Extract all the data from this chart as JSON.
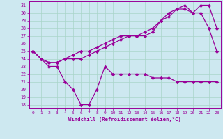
{
  "xlabel": "Windchill (Refroidissement éolien,°C)",
  "background_color": "#cde8f0",
  "grid_color": "#a8d5c8",
  "line_color": "#990099",
  "x": [
    0,
    1,
    2,
    3,
    4,
    5,
    6,
    7,
    8,
    9,
    10,
    11,
    12,
    13,
    14,
    15,
    16,
    17,
    18,
    19,
    20,
    21,
    22,
    23
  ],
  "line1": [
    25,
    24,
    23.5,
    23.5,
    24,
    24,
    24,
    24.5,
    25,
    25.5,
    26,
    26.5,
    27,
    27,
    27,
    27.5,
    29,
    29.5,
    30.5,
    30.5,
    30,
    31,
    31,
    28
  ],
  "line2": [
    25,
    24,
    23.5,
    23.5,
    24,
    24.5,
    25,
    25,
    25.5,
    26,
    26.5,
    27,
    27,
    27,
    27.5,
    28,
    29,
    30,
    30.5,
    31,
    30,
    30,
    28,
    25
  ],
  "line3": [
    25,
    24,
    23,
    23,
    21,
    20,
    18,
    18,
    20,
    23,
    22,
    22,
    22,
    22,
    22,
    21.5,
    21.5,
    21.5,
    21,
    21,
    21,
    21,
    21,
    21
  ],
  "ylim": [
    17.5,
    31.5
  ],
  "yticks": [
    18,
    19,
    20,
    21,
    22,
    23,
    24,
    25,
    26,
    27,
    28,
    29,
    30,
    31
  ],
  "xlim": [
    -0.5,
    23.5
  ],
  "xticks": [
    0,
    1,
    2,
    3,
    4,
    5,
    6,
    7,
    8,
    9,
    10,
    11,
    12,
    13,
    14,
    15,
    16,
    17,
    18,
    19,
    20,
    21,
    22,
    23
  ]
}
